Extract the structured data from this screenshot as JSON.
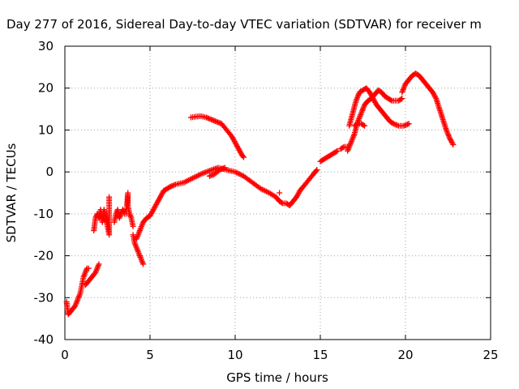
{
  "chart_data": {
    "type": "scatter",
    "title": "Day 277 of 2016, Sidereal Day-to-day VTEC variation (SDTVAR) for receiver m",
    "xlabel": "GPS time / hours",
    "ylabel": "SDTVAR / TECUs",
    "xlim": [
      0,
      25
    ],
    "ylim": [
      -40,
      30
    ],
    "xticks": [
      "0",
      "5",
      "10",
      "15",
      "20",
      "25"
    ],
    "yticks": [
      "-40",
      "-30",
      "-20",
      "-10",
      "0",
      "10",
      "20",
      "30"
    ],
    "grid": true,
    "marker": "+",
    "color": "#ff0000",
    "series": [
      {
        "segments": [
          [
            [
              0.1,
              -31
            ],
            [
              0.2,
              -34
            ],
            [
              0.4,
              -33
            ],
            [
              0.6,
              -32
            ],
            [
              0.8,
              -30
            ],
            [
              0.9,
              -29
            ],
            [
              1.0,
              -27
            ],
            [
              1.1,
              -25
            ],
            [
              1.2,
              -24
            ],
            [
              1.3,
              -23
            ],
            [
              1.4,
              -23
            ]
          ],
          [
            [
              1.2,
              -27
            ],
            [
              1.4,
              -26
            ],
            [
              1.6,
              -25
            ],
            [
              1.8,
              -24
            ],
            [
              1.9,
              -23
            ],
            [
              2.0,
              -22
            ]
          ],
          [
            [
              1.7,
              -14
            ],
            [
              1.8,
              -11
            ],
            [
              1.9,
              -10
            ],
            [
              2.0,
              -11
            ],
            [
              2.1,
              -9
            ],
            [
              2.2,
              -12
            ],
            [
              2.3,
              -9
            ],
            [
              2.4,
              -11
            ],
            [
              2.5,
              -13
            ],
            [
              2.6,
              -15
            ],
            [
              2.6,
              -12
            ],
            [
              2.6,
              -6
            ]
          ],
          [
            [
              2.9,
              -12
            ],
            [
              3.0,
              -10
            ],
            [
              3.1,
              -9
            ],
            [
              3.2,
              -11
            ],
            [
              3.3,
              -10
            ],
            [
              3.4,
              -9
            ],
            [
              3.5,
              -10
            ],
            [
              3.6,
              -10
            ],
            [
              3.7,
              -5
            ],
            [
              3.7,
              -8
            ],
            [
              3.8,
              -10
            ],
            [
              3.9,
              -11
            ],
            [
              4.0,
              -13
            ]
          ],
          [
            [
              4.0,
              -15
            ],
            [
              4.1,
              -17
            ],
            [
              4.2,
              -18
            ],
            [
              4.3,
              -19
            ],
            [
              4.4,
              -20
            ],
            [
              4.5,
              -21
            ],
            [
              4.6,
              -22
            ]
          ],
          [
            [
              4.2,
              -16
            ],
            [
              4.4,
              -14
            ],
            [
              4.6,
              -12
            ],
            [
              4.8,
              -11
            ],
            [
              5.0,
              -10.5
            ],
            [
              5.2,
              -9
            ],
            [
              5.4,
              -7.5
            ],
            [
              5.6,
              -6
            ],
            [
              5.8,
              -4.5
            ],
            [
              6.0,
              -4
            ],
            [
              6.2,
              -3.5
            ],
            [
              6.5,
              -3
            ],
            [
              7.0,
              -2.5
            ],
            [
              7.5,
              -1.5
            ],
            [
              8.0,
              -0.5
            ],
            [
              8.5,
              0.3
            ],
            [
              9.0,
              1
            ],
            [
              9.5,
              0.5
            ],
            [
              10.0,
              0
            ],
            [
              10.5,
              -1
            ],
            [
              11.0,
              -2.5
            ],
            [
              11.5,
              -4
            ],
            [
              12.0,
              -5
            ],
            [
              12.4,
              -6
            ],
            [
              12.6,
              -7
            ],
            [
              12.8,
              -7.5
            ],
            [
              13.0,
              -7.5
            ],
            [
              13.2,
              -8
            ],
            [
              13.4,
              -7
            ],
            [
              13.6,
              -6
            ],
            [
              13.8,
              -4.5
            ],
            [
              14.0,
              -3.5
            ],
            [
              14.3,
              -2
            ],
            [
              14.6,
              -0.5
            ],
            [
              14.8,
              0.5
            ]
          ],
          [
            [
              8.5,
              -1
            ],
            [
              8.8,
              -0.5
            ],
            [
              9.1,
              0.5
            ],
            [
              9.4,
              1
            ]
          ],
          [
            [
              12.6,
              -5
            ]
          ],
          [
            [
              7.4,
              13
            ],
            [
              7.7,
              13.2
            ],
            [
              8.0,
              13.3
            ],
            [
              8.3,
              13
            ],
            [
              8.6,
              12.5
            ],
            [
              8.9,
              12
            ],
            [
              9.2,
              11.5
            ],
            [
              9.5,
              10
            ],
            [
              9.8,
              8.5
            ],
            [
              10.0,
              7
            ],
            [
              10.2,
              5.5
            ],
            [
              10.4,
              4
            ],
            [
              10.5,
              3.5
            ]
          ],
          [
            [
              15.0,
              2.5
            ],
            [
              15.2,
              3
            ],
            [
              15.4,
              3.5
            ],
            [
              15.6,
              4
            ],
            [
              15.8,
              4.5
            ],
            [
              16.0,
              5
            ]
          ],
          [
            [
              16.2,
              5.5
            ],
            [
              16.4,
              6
            ],
            [
              16.6,
              6
            ]
          ],
          [
            [
              16.6,
              5
            ],
            [
              16.8,
              7
            ],
            [
              17.0,
              9
            ],
            [
              17.2,
              12
            ],
            [
              17.4,
              14
            ],
            [
              17.6,
              16
            ],
            [
              17.8,
              17
            ],
            [
              18.0,
              17.5
            ],
            [
              18.2,
              18.5
            ],
            [
              18.4,
              19.5
            ],
            [
              18.6,
              19
            ],
            [
              18.8,
              18
            ],
            [
              19.0,
              17.5
            ],
            [
              19.2,
              17
            ],
            [
              19.4,
              17
            ],
            [
              19.6,
              17
            ],
            [
              19.8,
              17.5
            ]
          ],
          [
            [
              16.7,
              11
            ],
            [
              16.9,
              14
            ],
            [
              17.1,
              17
            ],
            [
              17.3,
              19
            ],
            [
              17.5,
              19.5
            ],
            [
              17.7,
              20
            ],
            [
              17.9,
              19
            ],
            [
              18.1,
              17.5
            ],
            [
              18.3,
              16
            ],
            [
              18.5,
              15
            ],
            [
              18.7,
              14
            ],
            [
              18.9,
              13
            ],
            [
              19.1,
              12
            ],
            [
              19.3,
              11.5
            ],
            [
              19.6,
              11
            ],
            [
              19.9,
              11
            ],
            [
              20.2,
              11.5
            ]
          ],
          [
            [
              17.0,
              11
            ],
            [
              17.2,
              11.5
            ],
            [
              17.4,
              11.5
            ],
            [
              17.6,
              11
            ]
          ],
          [
            [
              19.8,
              19
            ],
            [
              20.0,
              21
            ],
            [
              20.2,
              22
            ],
            [
              20.4,
              23
            ],
            [
              20.6,
              23.5
            ],
            [
              20.8,
              23
            ],
            [
              21.0,
              22
            ],
            [
              21.2,
              21
            ],
            [
              21.4,
              20
            ],
            [
              21.6,
              19
            ],
            [
              21.8,
              17.5
            ],
            [
              22.0,
              15
            ],
            [
              22.2,
              12.5
            ],
            [
              22.4,
              10
            ],
            [
              22.6,
              8
            ],
            [
              22.8,
              6.5
            ]
          ]
        ]
      }
    ]
  }
}
